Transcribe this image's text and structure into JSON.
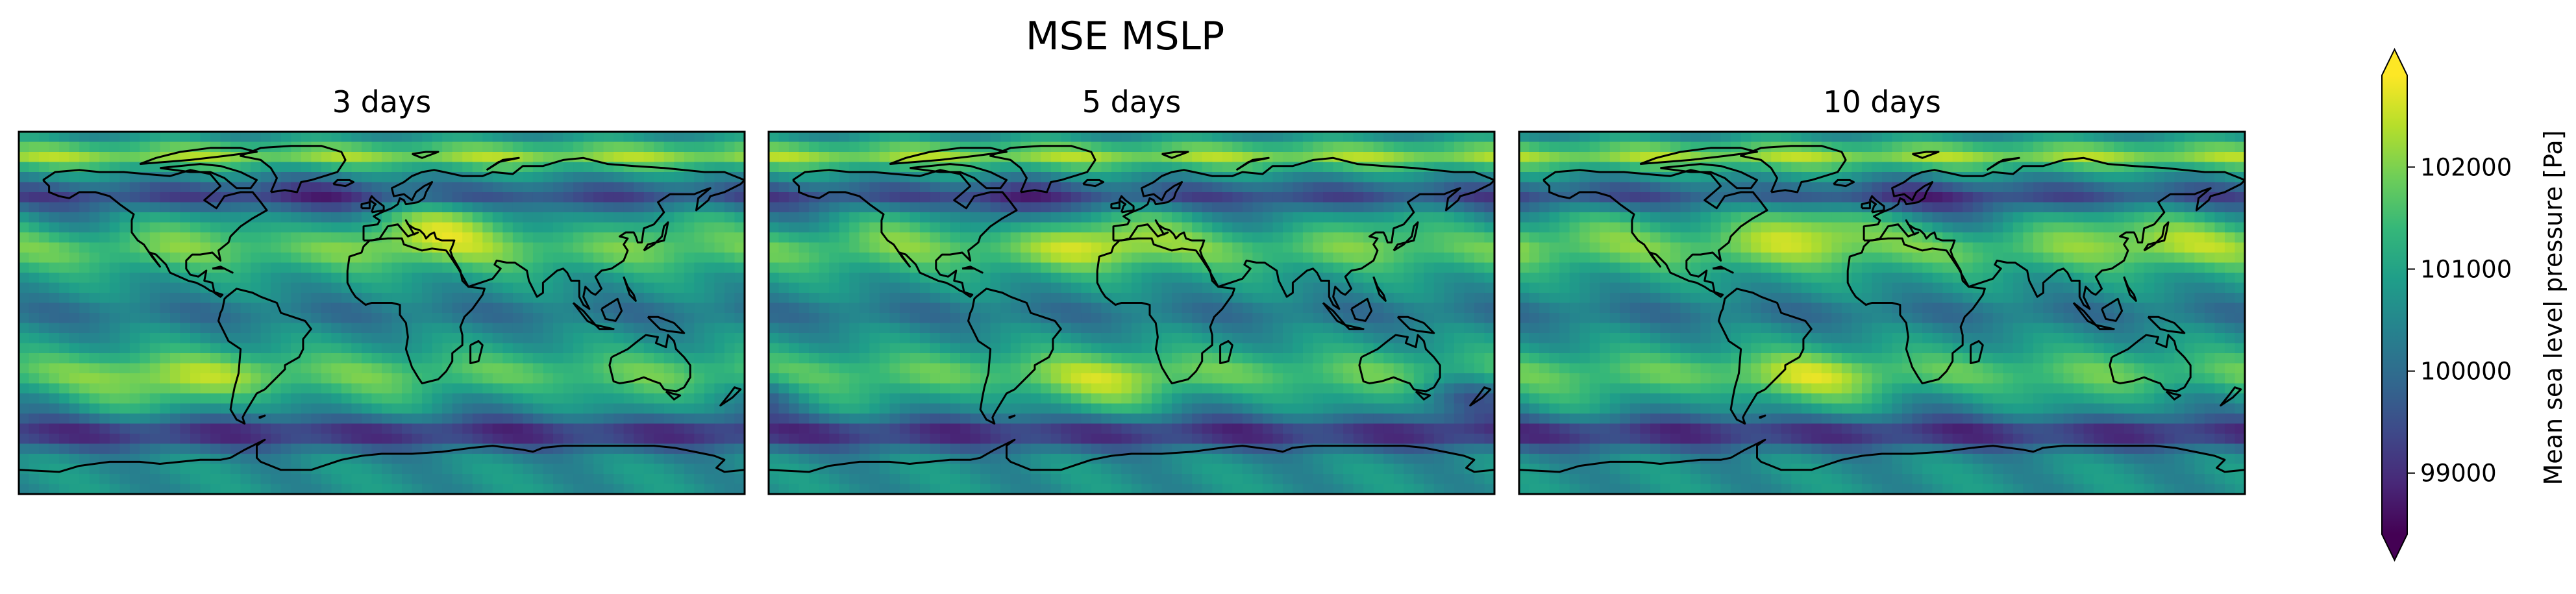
{
  "figure": {
    "suptitle": "MSE MSLP"
  },
  "chart_data": {
    "type": "heatmap",
    "title": "MSE MSLP",
    "panels": [
      {
        "title": "3 days",
        "variant": 0
      },
      {
        "title": "5 days",
        "variant": 1
      },
      {
        "title": "10 days",
        "variant": 2
      }
    ],
    "colormap": "viridis",
    "colors": [
      "#440154",
      "#482878",
      "#3e4989",
      "#31688e",
      "#26828e",
      "#1f9e89",
      "#35b779",
      "#6ece58",
      "#b5de2b",
      "#fde725"
    ],
    "coastline_color": "#000000",
    "colorbar": {
      "label": "Mean sea level pressure [Pa]",
      "vmin": 98400,
      "vmax": 102900,
      "ticks": [
        99000,
        100000,
        101000,
        102000
      ],
      "tick_labels": [
        "99000",
        "100000",
        "101000",
        "102000"
      ],
      "extend": "both"
    }
  }
}
